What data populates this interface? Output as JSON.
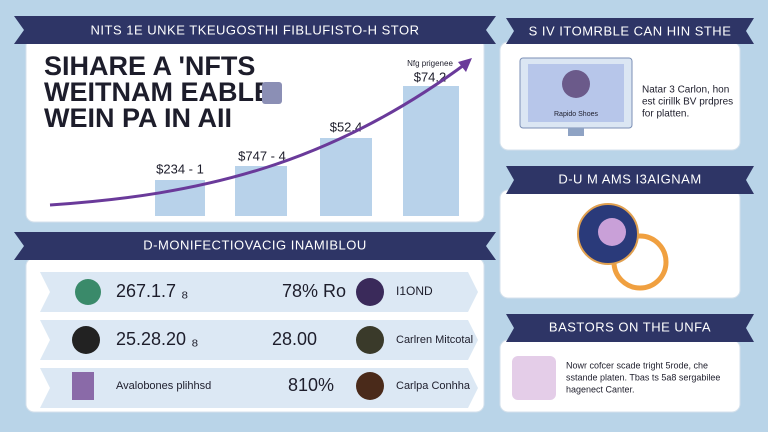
{
  "left_panel": {
    "banner": "NITS 1E UNKE TKEUGOSTHI FIBLUFISTO-H STOR",
    "headline": [
      "SIHARE A 'NFTS",
      "WEITNAM EABLE",
      "WEIN PA IN AII"
    ],
    "bar_labels": [
      "$234 - 1",
      "$747 - 4",
      "$52.4",
      "$74.2"
    ],
    "bar_note": "Nfg prigenee"
  },
  "top_right_panel": {
    "banner": "S IV ITOMRBLE CAN HIN STHE",
    "screen_caption": "Rapido Shoes",
    "text": [
      "Natar 3 Carlon, hon",
      "est cirillk BV prdpres",
      "for platten."
    ]
  },
  "middle_right_panel": {
    "banner": "D-U M AMS I3AIGNAM"
  },
  "bottom_left_panel": {
    "banner": "D-MONIFECTIOVACIG INAMIBLOU",
    "rows": [
      [
        "267.1.7 ₈",
        "78% Ro",
        "I1OND"
      ],
      [
        "25.28.20 ₈",
        "28.00",
        "Carlren Mitcotal"
      ],
      [
        "Avalobones plihhsd",
        "810%",
        "Carlpa Conhha"
      ]
    ]
  },
  "bottom_right_panel": {
    "banner": "BASTORS ON THE UNFA",
    "text": [
      "Nowr cofcer scade tright 5rode, che",
      "sstande platen. Tbas ts 5a8 sergabilee",
      "hagenect Canter."
    ]
  }
}
